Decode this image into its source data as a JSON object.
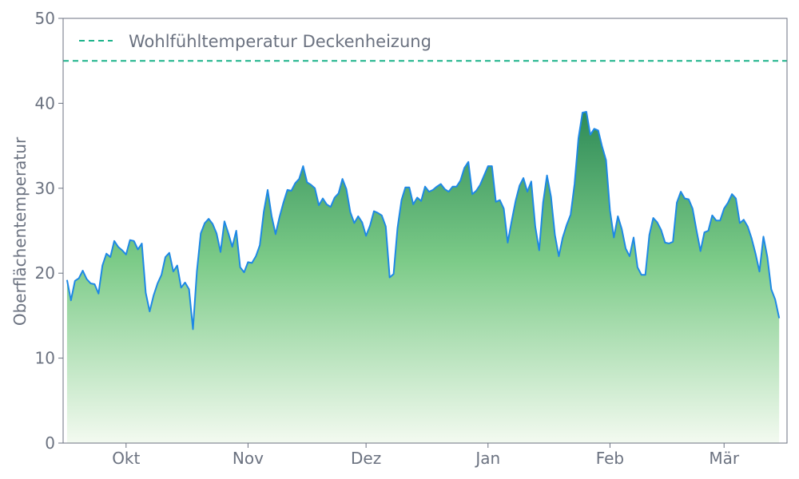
{
  "chart_data": {
    "type": "area",
    "title": "",
    "xlabel": "",
    "ylabel": "Oberflächentemperatur",
    "ylim": [
      0,
      50
    ],
    "yticks": [
      0,
      10,
      20,
      30,
      40,
      50
    ],
    "xlim": [
      "2019-09-15",
      "2020-03-17"
    ],
    "xticks": [
      {
        "date": "2019-10-01",
        "label": "Okt"
      },
      {
        "date": "2019-11-01",
        "label": "Nov"
      },
      {
        "date": "2019-12-01",
        "label": "Dez"
      },
      {
        "date": "2020-01-01",
        "label": "Jan"
      },
      {
        "date": "2020-02-01",
        "label": "Feb"
      },
      {
        "date": "2020-03-01",
        "label": "Mär"
      }
    ],
    "grid": false,
    "legend_position": "top-left",
    "reference_line": {
      "name": "Wohlfühltemperatur Deckenheizung",
      "y": 45,
      "color": "#1db38a",
      "style": "dashed"
    },
    "series": [
      {
        "color": "#1e88e5",
        "fill_gradient": [
          "#2e8b57",
          "#f3faf0"
        ],
        "points": [
          [
            "2019-09-16",
            19.2
          ],
          [
            "2019-09-17",
            16.8
          ],
          [
            "2019-09-18",
            19.1
          ],
          [
            "2019-09-19",
            19.4
          ],
          [
            "2019-09-20",
            20.3
          ],
          [
            "2019-09-21",
            19.3
          ],
          [
            "2019-09-22",
            18.8
          ],
          [
            "2019-09-23",
            18.7
          ],
          [
            "2019-09-24",
            17.6
          ],
          [
            "2019-09-25",
            20.9
          ],
          [
            "2019-09-26",
            22.3
          ],
          [
            "2019-09-27",
            21.9
          ],
          [
            "2019-09-28",
            23.8
          ],
          [
            "2019-09-29",
            23.1
          ],
          [
            "2019-09-30",
            22.7
          ],
          [
            "2019-10-01",
            22.2
          ],
          [
            "2019-10-02",
            23.9
          ],
          [
            "2019-10-03",
            23.8
          ],
          [
            "2019-10-04",
            22.8
          ],
          [
            "2019-10-05",
            23.5
          ],
          [
            "2019-10-06",
            17.7
          ],
          [
            "2019-10-07",
            15.5
          ],
          [
            "2019-10-08",
            17.4
          ],
          [
            "2019-10-09",
            18.8
          ],
          [
            "2019-10-10",
            19.8
          ],
          [
            "2019-10-11",
            21.9
          ],
          [
            "2019-10-12",
            22.4
          ],
          [
            "2019-10-13",
            20.2
          ],
          [
            "2019-10-14",
            20.9
          ],
          [
            "2019-10-15",
            18.3
          ],
          [
            "2019-10-16",
            18.9
          ],
          [
            "2019-10-17",
            18.1
          ],
          [
            "2019-10-18",
            13.4
          ],
          [
            "2019-10-19",
            20.2
          ],
          [
            "2019-10-20",
            24.7
          ],
          [
            "2019-10-21",
            25.9
          ],
          [
            "2019-10-22",
            26.4
          ],
          [
            "2019-10-23",
            25.8
          ],
          [
            "2019-10-24",
            24.7
          ],
          [
            "2019-10-25",
            22.5
          ],
          [
            "2019-10-26",
            26.1
          ],
          [
            "2019-10-27",
            24.7
          ],
          [
            "2019-10-28",
            23.1
          ],
          [
            "2019-10-29",
            25.0
          ],
          [
            "2019-10-30",
            20.7
          ],
          [
            "2019-10-31",
            20.1
          ],
          [
            "2019-11-01",
            21.3
          ],
          [
            "2019-11-02",
            21.2
          ],
          [
            "2019-11-03",
            22.0
          ],
          [
            "2019-11-04",
            23.3
          ],
          [
            "2019-11-05",
            27.2
          ],
          [
            "2019-11-06",
            29.8
          ],
          [
            "2019-11-07",
            26.7
          ],
          [
            "2019-11-08",
            24.6
          ],
          [
            "2019-11-09",
            26.6
          ],
          [
            "2019-11-10",
            28.3
          ],
          [
            "2019-11-11",
            29.8
          ],
          [
            "2019-11-12",
            29.7
          ],
          [
            "2019-11-13",
            30.6
          ],
          [
            "2019-11-14",
            31.1
          ],
          [
            "2019-11-15",
            32.6
          ],
          [
            "2019-11-16",
            30.7
          ],
          [
            "2019-11-17",
            30.4
          ],
          [
            "2019-11-18",
            30.0
          ],
          [
            "2019-11-19",
            28.0
          ],
          [
            "2019-11-20",
            28.8
          ],
          [
            "2019-11-21",
            28.1
          ],
          [
            "2019-11-22",
            27.8
          ],
          [
            "2019-11-23",
            28.9
          ],
          [
            "2019-11-24",
            29.4
          ],
          [
            "2019-11-25",
            31.1
          ],
          [
            "2019-11-26",
            29.9
          ],
          [
            "2019-11-27",
            27.2
          ],
          [
            "2019-11-28",
            25.9
          ],
          [
            "2019-11-29",
            26.7
          ],
          [
            "2019-11-30",
            26.0
          ],
          [
            "2019-12-01",
            24.4
          ],
          [
            "2019-12-02",
            25.6
          ],
          [
            "2019-12-03",
            27.3
          ],
          [
            "2019-12-04",
            27.1
          ],
          [
            "2019-12-05",
            26.8
          ],
          [
            "2019-12-06",
            25.5
          ],
          [
            "2019-12-07",
            19.5
          ],
          [
            "2019-12-08",
            19.9
          ],
          [
            "2019-12-09",
            25.3
          ],
          [
            "2019-12-10",
            28.6
          ],
          [
            "2019-12-11",
            30.1
          ],
          [
            "2019-12-12",
            30.1
          ],
          [
            "2019-12-13",
            28.1
          ],
          [
            "2019-12-14",
            28.9
          ],
          [
            "2019-12-15",
            28.5
          ],
          [
            "2019-12-16",
            30.2
          ],
          [
            "2019-12-17",
            29.6
          ],
          [
            "2019-12-18",
            29.8
          ],
          [
            "2019-12-19",
            30.2
          ],
          [
            "2019-12-20",
            30.5
          ],
          [
            "2019-12-21",
            29.9
          ],
          [
            "2019-12-22",
            29.6
          ],
          [
            "2019-12-23",
            30.2
          ],
          [
            "2019-12-24",
            30.2
          ],
          [
            "2019-12-25",
            30.9
          ],
          [
            "2019-12-26",
            32.4
          ],
          [
            "2019-12-27",
            33.1
          ],
          [
            "2019-12-28",
            29.3
          ],
          [
            "2019-12-29",
            29.7
          ],
          [
            "2019-12-30",
            30.4
          ],
          [
            "2019-12-31",
            31.5
          ],
          [
            "2020-01-01",
            32.6
          ],
          [
            "2020-01-02",
            32.6
          ],
          [
            "2020-01-03",
            28.4
          ],
          [
            "2020-01-04",
            28.6
          ],
          [
            "2020-01-05",
            27.6
          ],
          [
            "2020-01-06",
            23.6
          ],
          [
            "2020-01-07",
            26.1
          ],
          [
            "2020-01-08",
            28.5
          ],
          [
            "2020-01-09",
            30.3
          ],
          [
            "2020-01-10",
            31.2
          ],
          [
            "2020-01-11",
            29.6
          ],
          [
            "2020-01-12",
            30.8
          ],
          [
            "2020-01-13",
            25.5
          ],
          [
            "2020-01-14",
            22.7
          ],
          [
            "2020-01-15",
            28.3
          ],
          [
            "2020-01-16",
            31.5
          ],
          [
            "2020-01-17",
            29.0
          ],
          [
            "2020-01-18",
            24.5
          ],
          [
            "2020-01-19",
            22.0
          ],
          [
            "2020-01-20",
            24.2
          ],
          [
            "2020-01-21",
            25.7
          ],
          [
            "2020-01-22",
            26.9
          ],
          [
            "2020-01-23",
            30.5
          ],
          [
            "2020-01-24",
            35.9
          ],
          [
            "2020-01-25",
            38.9
          ],
          [
            "2020-01-26",
            39.0
          ],
          [
            "2020-01-27",
            36.3
          ],
          [
            "2020-01-28",
            37.0
          ],
          [
            "2020-01-29",
            36.8
          ],
          [
            "2020-01-30",
            34.9
          ],
          [
            "2020-01-31",
            33.3
          ],
          [
            "2020-02-01",
            27.4
          ],
          [
            "2020-02-02",
            24.2
          ],
          [
            "2020-02-03",
            26.7
          ],
          [
            "2020-02-04",
            25.2
          ],
          [
            "2020-02-05",
            22.9
          ],
          [
            "2020-02-06",
            22.0
          ],
          [
            "2020-02-07",
            24.2
          ],
          [
            "2020-02-08",
            20.7
          ],
          [
            "2020-02-09",
            19.8
          ],
          [
            "2020-02-10",
            19.8
          ],
          [
            "2020-02-11",
            24.5
          ],
          [
            "2020-02-12",
            26.5
          ],
          [
            "2020-02-13",
            26.0
          ],
          [
            "2020-02-14",
            25.1
          ],
          [
            "2020-02-15",
            23.6
          ],
          [
            "2020-02-16",
            23.5
          ],
          [
            "2020-02-17",
            23.7
          ],
          [
            "2020-02-18",
            28.3
          ],
          [
            "2020-02-19",
            29.6
          ],
          [
            "2020-02-20",
            28.8
          ],
          [
            "2020-02-21",
            28.7
          ],
          [
            "2020-02-22",
            27.6
          ],
          [
            "2020-02-23",
            25.0
          ],
          [
            "2020-02-24",
            22.6
          ],
          [
            "2020-02-25",
            24.8
          ],
          [
            "2020-02-26",
            25.0
          ],
          [
            "2020-02-27",
            26.8
          ],
          [
            "2020-02-28",
            26.2
          ],
          [
            "2020-02-29",
            26.2
          ],
          [
            "2020-03-01",
            27.6
          ],
          [
            "2020-03-02",
            28.3
          ],
          [
            "2020-03-03",
            29.3
          ],
          [
            "2020-03-04",
            28.8
          ],
          [
            "2020-03-05",
            25.9
          ],
          [
            "2020-03-06",
            26.3
          ],
          [
            "2020-03-07",
            25.5
          ],
          [
            "2020-03-08",
            24.1
          ],
          [
            "2020-03-09",
            22.3
          ],
          [
            "2020-03-10",
            20.2
          ],
          [
            "2020-03-11",
            24.3
          ],
          [
            "2020-03-12",
            21.9
          ],
          [
            "2020-03-13",
            18.1
          ],
          [
            "2020-03-14",
            16.9
          ],
          [
            "2020-03-15",
            14.7
          ]
        ]
      }
    ]
  }
}
